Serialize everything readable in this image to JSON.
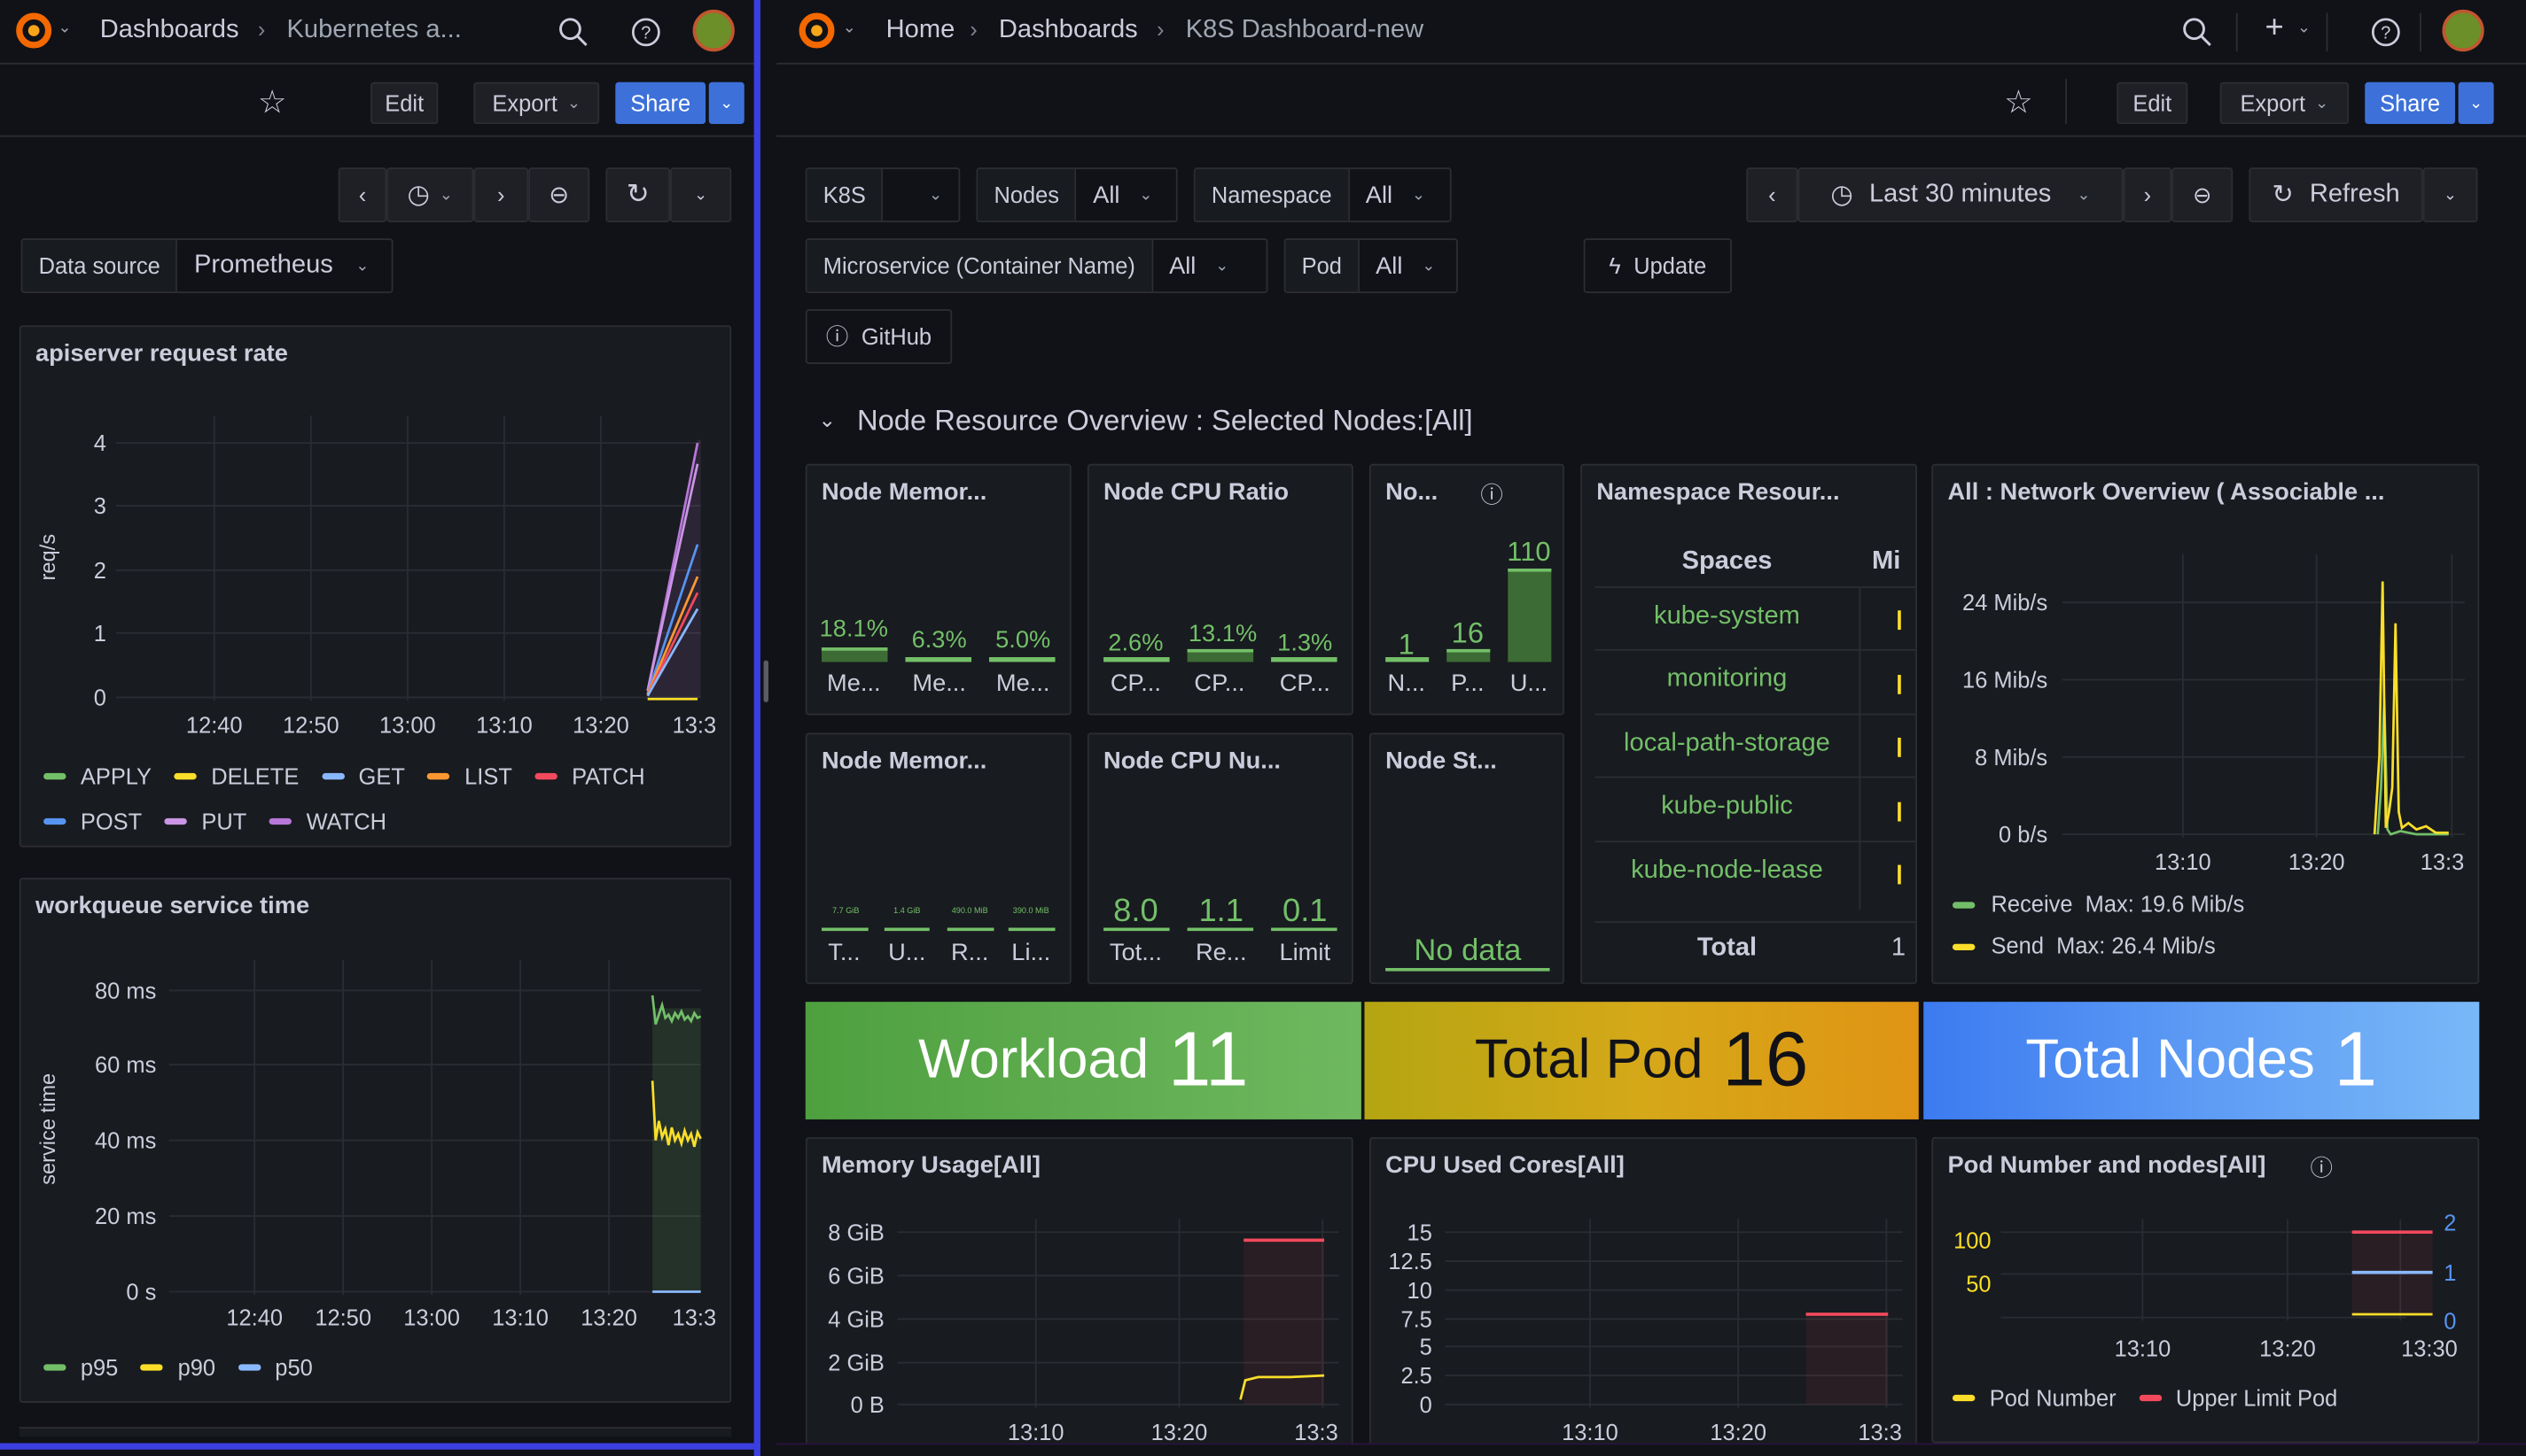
{
  "left": {
    "breadcrumb": [
      "Dashboards",
      "Kubernetes a..."
    ],
    "toolbar": {
      "edit": "Edit",
      "export": "Export",
      "share": "Share"
    },
    "datasource": {
      "label": "Data source",
      "value": "Prometheus"
    },
    "apiserver": {
      "title": "apiserver request rate",
      "ylabel": "req/s",
      "yticks": [
        "4",
        "3",
        "2",
        "1",
        "0"
      ],
      "xticks": [
        "12:40",
        "12:50",
        "13:00",
        "13:10",
        "13:20",
        "13:3"
      ],
      "legend": [
        "APPLY",
        "DELETE",
        "GET",
        "LIST",
        "PATCH",
        "POST",
        "PUT",
        "WATCH"
      ]
    },
    "workqueue": {
      "title": "workqueue service time",
      "ylabel": "service time",
      "yticks": [
        "80 ms",
        "60 ms",
        "40 ms",
        "20 ms",
        "0 s"
      ],
      "xticks": [
        "12:40",
        "12:50",
        "13:00",
        "13:10",
        "13:20",
        "13:3"
      ],
      "legend": [
        "p95",
        "p90",
        "p50"
      ]
    }
  },
  "right": {
    "breadcrumb": [
      "Home",
      "Dashboards",
      "K8S Dashboard-new"
    ],
    "toolbar": {
      "edit": "Edit",
      "export": "Export",
      "share": "Share"
    },
    "vars": {
      "k8s": "K8S",
      "nodes": {
        "label": "Nodes",
        "value": "All"
      },
      "namespace": {
        "label": "Namespace",
        "value": "All"
      },
      "microservice": {
        "label": "Microservice (Container Name)",
        "value": "All"
      },
      "pod": {
        "label": "Pod",
        "value": "All"
      },
      "github": "GitHub",
      "update": "Update"
    },
    "timepicker": {
      "range": "Last 30 minutes",
      "refresh": "Refresh"
    },
    "row_title": "Node Resource Overview : Selected Nodes:[All]",
    "node_mem_ratio": {
      "title": "Node Memor...",
      "values": [
        "18.1%",
        "6.3%",
        "5.0%"
      ],
      "labels": [
        "Me...",
        "Me...",
        "Me..."
      ]
    },
    "node_cpu_ratio": {
      "title": "Node CPU Ratio",
      "values": [
        "2.6%",
        "13.1%",
        "1.3%"
      ],
      "labels": [
        "CP...",
        "CP...",
        "CP..."
      ]
    },
    "node_no": {
      "title": "No...",
      "values": [
        "1",
        "16",
        "110"
      ],
      "labels": [
        "N...",
        "P...",
        "U..."
      ]
    },
    "node_mem2": {
      "title": "Node Memor...",
      "values": [
        "7.7 GiB",
        "1.4 GiB",
        "490.0 MiB",
        "390.0 MiB"
      ],
      "labels": [
        "T...",
        "U...",
        "R...",
        "Li..."
      ]
    },
    "node_cpu_num": {
      "title": "Node CPU Nu...",
      "values": [
        "8.0",
        "1.1",
        "0.1"
      ],
      "labels": [
        "Tot...",
        "Re...",
        "Limit"
      ]
    },
    "node_st": {
      "title": "Node St...",
      "nodata": "No data"
    },
    "ns_resources": {
      "title": "Namespace Resour...",
      "col1": "Spaces",
      "col2": "Mi",
      "rows": [
        "kube-system",
        "monitoring",
        "local-path-storage",
        "kube-public",
        "kube-node-lease"
      ],
      "total": "Total",
      "total_val": "1"
    },
    "network": {
      "title": "All : Network Overview ( Associable ...",
      "yticks": [
        "24 Mib/s",
        "16 Mib/s",
        "8 Mib/s",
        "0 b/s"
      ],
      "xticks": [
        "13:10",
        "13:20",
        "13:3"
      ],
      "legend": [
        {
          "name": "Receive",
          "max": "Max: 19.6 Mib/s"
        },
        {
          "name": "Send",
          "max": "Max: 26.4 Mib/s"
        }
      ]
    },
    "big": [
      {
        "label": "Workload",
        "value": "11"
      },
      {
        "label": "Total Pod",
        "value": "16"
      },
      {
        "label": "Total Nodes",
        "value": "1"
      }
    ],
    "memory": {
      "title": "Memory Usage[All]",
      "yticks": [
        "8 GiB",
        "6 GiB",
        "4 GiB",
        "2 GiB",
        "0 B"
      ],
      "xticks": [
        "13:10",
        "13:20",
        "13:3"
      ]
    },
    "cpu": {
      "title": "CPU Used Cores[All]",
      "yticks": [
        "15",
        "12.5",
        "10",
        "7.5",
        "5",
        "2.5",
        "0"
      ],
      "xticks": [
        "13:10",
        "13:20",
        "13:3"
      ]
    },
    "podnum": {
      "title": "Pod Number and nodes[All]",
      "yticks_left": [
        "100",
        "50"
      ],
      "yticks_right": [
        "2",
        "1",
        "0"
      ],
      "xticks": [
        "13:10",
        "13:20",
        "13:30"
      ],
      "legend": [
        "Pod Number",
        "Upper Limit Pod"
      ]
    }
  },
  "colors": {
    "green": "#73bf69",
    "yellow": "#fade2a",
    "red": "#f2495c",
    "blue": "#5794f2",
    "orange": "#ff9830",
    "purple": "#b877d9",
    "accent": "#3d71d9"
  }
}
